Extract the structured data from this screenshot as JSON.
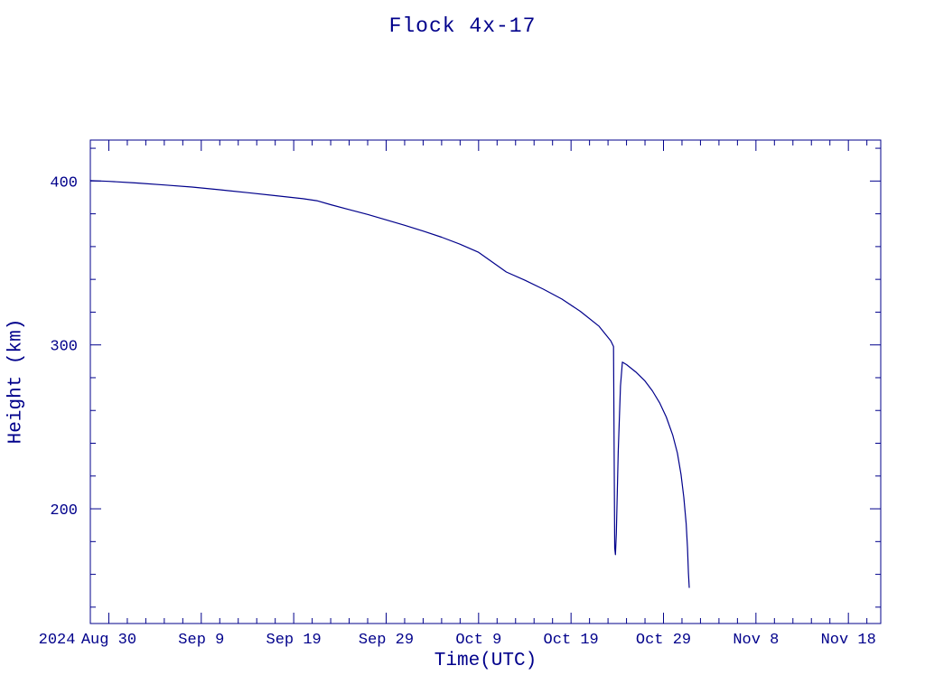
{
  "page": {
    "background": "#ffffff",
    "accent": "#00008b"
  },
  "chart_data": {
    "type": "line",
    "title": "Flock 4x-17",
    "xlabel": "Time(UTC)",
    "ylabel": "Height (km)",
    "line_color": "#00008b",
    "grid": false,
    "legend": "none",
    "x_unit": "days relative to 2024 Aug 30",
    "xlim": [
      -2,
      83.5
    ],
    "ylim": [
      130,
      425
    ],
    "x_year_label": "2024",
    "x_ticks": [
      {
        "day": 0,
        "label": "Aug 30"
      },
      {
        "day": 10,
        "label": "Sep 9"
      },
      {
        "day": 20,
        "label": "Sep 19"
      },
      {
        "day": 30,
        "label": "Sep 29"
      },
      {
        "day": 40,
        "label": "Oct 9"
      },
      {
        "day": 50,
        "label": "Oct 19"
      },
      {
        "day": 60,
        "label": "Oct 29"
      },
      {
        "day": 70,
        "label": "Nov 8"
      },
      {
        "day": 80,
        "label": "Nov 18"
      }
    ],
    "x_minor_step": 2,
    "y_ticks": [
      {
        "value": 200,
        "label": "200"
      },
      {
        "value": 300,
        "label": "300"
      },
      {
        "value": 400,
        "label": "400"
      }
    ],
    "y_minor_step": 20,
    "series": [
      {
        "name": "Flock 4x-17 orbital height",
        "points": [
          [
            -2,
            400.3
          ],
          [
            0,
            399.8
          ],
          [
            3,
            398.8
          ],
          [
            6,
            397.6
          ],
          [
            9,
            396.3
          ],
          [
            12,
            394.7
          ],
          [
            15,
            392.9
          ],
          [
            18,
            391.1
          ],
          [
            21,
            389.2
          ],
          [
            22.5,
            388.0
          ],
          [
            24,
            385.6
          ],
          [
            26,
            382.6
          ],
          [
            28,
            379.6
          ],
          [
            30,
            376.3
          ],
          [
            32,
            373.0
          ],
          [
            34,
            369.5
          ],
          [
            36,
            365.7
          ],
          [
            38,
            361.4
          ],
          [
            40,
            356.5
          ],
          [
            42,
            348.5
          ],
          [
            43,
            344.5
          ],
          [
            45,
            339.5
          ],
          [
            47,
            334.0
          ],
          [
            49,
            328.0
          ],
          [
            51,
            320.5
          ],
          [
            53,
            311.5
          ],
          [
            54.3,
            302.5
          ],
          [
            54.6,
            299.0
          ],
          [
            54.72,
            176.0
          ],
          [
            54.8,
            172.0
          ],
          [
            54.9,
            185.0
          ],
          [
            55.1,
            235.0
          ],
          [
            55.35,
            275.0
          ],
          [
            55.55,
            289.5
          ],
          [
            56,
            288.0
          ],
          [
            57,
            283.5
          ],
          [
            58,
            278.0
          ],
          [
            58.8,
            272.0
          ],
          [
            59.6,
            264.5
          ],
          [
            60.3,
            256.0
          ],
          [
            61,
            245.0
          ],
          [
            61.5,
            234.0
          ],
          [
            61.9,
            221.0
          ],
          [
            62.2,
            207.0
          ],
          [
            62.45,
            191.0
          ],
          [
            62.6,
            176.0
          ],
          [
            62.7,
            161.0
          ],
          [
            62.78,
            152.0
          ]
        ]
      }
    ]
  }
}
